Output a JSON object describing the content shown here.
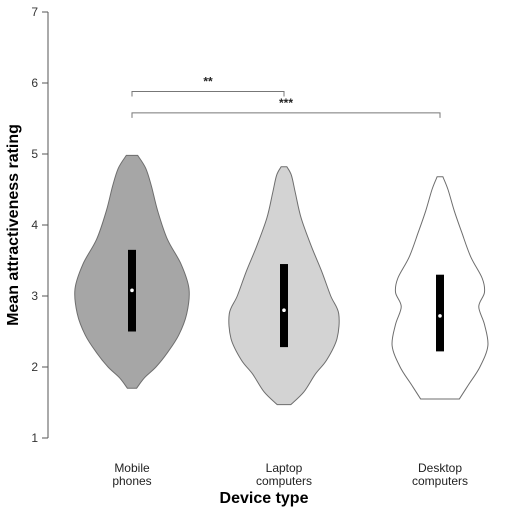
{
  "chart_data": {
    "type": "violin",
    "xlabel": "Device type",
    "ylabel": "Mean attractiveness rating",
    "ylim": [
      1,
      7
    ],
    "yticks": [
      1,
      2,
      3,
      4,
      5,
      6,
      7
    ],
    "grid": false,
    "categories": [
      [
        "Mobile",
        "phones"
      ],
      [
        "Laptop",
        "computers"
      ],
      [
        "Desktop",
        "computers"
      ]
    ],
    "series": [
      {
        "color": "#a6a6a6",
        "min": 1.7,
        "max": 4.98,
        "median": 3.08,
        "q1": 2.5,
        "q3": 3.65,
        "density": [
          [
            1.7,
            0.08
          ],
          [
            1.85,
            0.22
          ],
          [
            2.0,
            0.42
          ],
          [
            2.2,
            0.62
          ],
          [
            2.45,
            0.82
          ],
          [
            2.75,
            0.96
          ],
          [
            3.1,
            1.0
          ],
          [
            3.45,
            0.86
          ],
          [
            3.8,
            0.62
          ],
          [
            4.2,
            0.45
          ],
          [
            4.55,
            0.34
          ],
          [
            4.8,
            0.24
          ],
          [
            4.98,
            0.1
          ]
        ]
      },
      {
        "color": "#d3d3d3",
        "min": 1.47,
        "max": 4.82,
        "median": 2.8,
        "q1": 2.28,
        "q3": 3.45,
        "density": [
          [
            1.47,
            0.12
          ],
          [
            1.65,
            0.35
          ],
          [
            1.9,
            0.55
          ],
          [
            2.1,
            0.75
          ],
          [
            2.4,
            0.93
          ],
          [
            2.75,
            0.96
          ],
          [
            3.0,
            0.82
          ],
          [
            3.35,
            0.66
          ],
          [
            3.7,
            0.48
          ],
          [
            4.1,
            0.3
          ],
          [
            4.45,
            0.2
          ],
          [
            4.7,
            0.13
          ],
          [
            4.82,
            0.05
          ]
        ]
      },
      {
        "color": "#ffffff",
        "min": 1.55,
        "max": 4.68,
        "median": 2.72,
        "q1": 2.22,
        "q3": 3.3,
        "density": [
          [
            1.55,
            0.34
          ],
          [
            1.75,
            0.5
          ],
          [
            2.0,
            0.7
          ],
          [
            2.3,
            0.84
          ],
          [
            2.6,
            0.78
          ],
          [
            2.85,
            0.68
          ],
          [
            3.05,
            0.78
          ],
          [
            3.25,
            0.74
          ],
          [
            3.55,
            0.54
          ],
          [
            3.9,
            0.38
          ],
          [
            4.2,
            0.25
          ],
          [
            4.5,
            0.14
          ],
          [
            4.68,
            0.05
          ]
        ]
      }
    ],
    "annotations": [
      {
        "from": 0,
        "to": 1,
        "y": 5.88,
        "label": "**"
      },
      {
        "from": 0,
        "to": 2,
        "y": 5.58,
        "label": "***"
      }
    ]
  }
}
